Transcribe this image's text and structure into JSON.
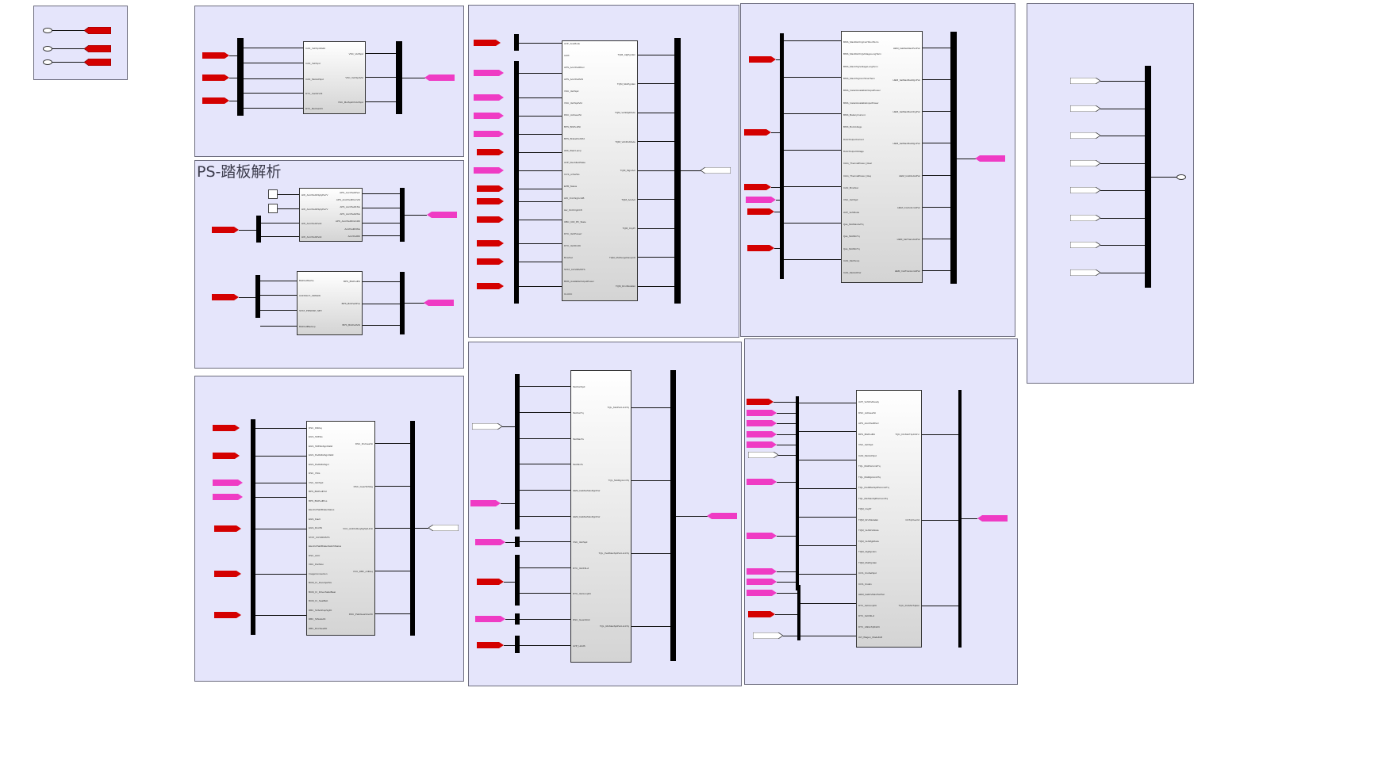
{
  "colors": {
    "goto": "#d40000",
    "from": "#ef3bc4",
    "area": "#e5e5fb",
    "bus": "#000000"
  },
  "areas": {
    "pedal_parse": {
      "title": "PS-踏板解析"
    }
  },
  "blocks": {
    "b1": {
      "in": [
        "CAN_VehSpdValid",
        "CAN_VehSpd",
        "CAN_MotActSpd",
        "DTC_CanDrvFlt",
        "DTC_MotCanFlt"
      ],
      "out": [
        "VSC_VehSpd",
        "VSC_VehSpdVld",
        "VSC_MotSpdOrVehSpd"
      ]
    },
    "b2": {
      "in": [
        "HW_AccrPedl1SplyPwrV",
        "HW_AccrPedl2SplyPwrV",
        "HW_AccrPedl1Volt",
        "HW_AccrPedl2Volt"
      ],
      "out": [
        "APS_AccrPedlPerc",
        "APS_AccrPedlPercVld",
        "APS_AccrPedl1Sts",
        "APS_AccrPedl2Sts",
        "APS_AccrPedlDrvIntFlt",
        "AccrPedlFltSts",
        "AccrPedlFlt"
      ]
    },
    "b3": {
      "in": [
        "BrkPedlSwNo",
        "CONTACT_FRNSW",
        "STAT_PRNDSP_SBY",
        "BrkPedlBackup"
      ],
      "out": [
        "BPS_BrkPedlSt",
        "BPS_BrkPedlPos",
        "BPS_BrkPedlVld"
      ]
    },
    "b4": {
      "in": [
        "DSC_FltRsq",
        "EGS_ShftSts",
        "EGS_ShftStsSgnlValid",
        "EGS_PedlAllwSgnValid",
        "EGS_PedlAllwSgnl",
        "DSC_VSts",
        "VSC_VehSpd",
        "BPS_BrkPedlVld",
        "BPS_BrkPedlPos",
        "ElectricParkBrakeStatus",
        "EGS_Fault",
        "EGS_DrvrPk",
        "STAT_CUVIRMSTS",
        "ElectricParkBrakeSwitchStatus",
        "DSC_ACC",
        "VDC_PwrMon",
        "ImageConnection",
        "BCM_Fr_DoorAjarSts",
        "BCM_Fr_DriverSafetBeat",
        "BCM_Fr_SeatBelt",
        "DBC_StrbeShopSgFlt",
        "DBC_StNodeFlt",
        "DBC_DrvrSeatFlt"
      ],
      "out": [
        "DSC_DrvGearSt",
        "DSC_GearShftAlg",
        "VCU_ActDrvReqAlgSplUnSt",
        "VCU_DBF_ctrlReq",
        "DSC_ParkGearInterFlt"
      ]
    },
    "b5": {
      "in": [
        "AVP_AvaMode",
        "AvRt",
        "APS_AccrPedlPerc",
        "APS_AccrPedlVld",
        "VSC_VehSpd",
        "VSC_VehSpdVld",
        "DSC_ActGearSt",
        "BPS_BrkPedlSt",
        "BPS_BrakePedlVld",
        "HMI_WarnLamp",
        "AVP_RecAllwdState",
        "CCS_ccSwSts",
        "EPB_Status",
        "HW_OnChrgCcntB",
        "Hw_OnChrgCC8",
        "OBC_CDI_PF_State",
        "DTC_VehPowerr",
        "DTC_VehDrvFlt",
        "BmsSoc",
        "STAT_CUVIRMSTS",
        "BMS_AvailableOutputPower",
        "CLUCC"
      ],
      "out": [
        "TQM_AlgPgmEn",
        "TQM_MotPgmEn",
        "TQM_VehMgtMode",
        "TQM_VehDrvMode",
        "TQM_MgmAct",
        "TQM_AccAct",
        "TQM_CsyPr",
        "TQM_MotSurgeDampCtl",
        "TQM_DrvrModeEn"
      ]
    },
    "b6": {
      "in": [
        "BMS_MaxDisChrgCurrShortTerm",
        "BMS_MaxDisChrgVoltageLongTerm",
        "BMS_MaxChrgVoltageLongTerm",
        "BMS_MaxChrgCurrShortTerm",
        "BMS_InstantAvailableOutputPower",
        "BMS_InstantAvailableInputPower",
        "BMS_BatteryCurrent",
        "BMS_BusVoltage",
        "DcdcOutputCurrent",
        "DcdcOutputVoltage",
        "CHG_ThermalPower_Real",
        "CHG_ThermalPower_Req",
        "CAN_BmsSoc",
        "VSC_VehSpd",
        "AVP_VehMode",
        "Qas_MotMaxAvlTq",
        "Qas_MotMinTq",
        "Qas_MotMinTq",
        "CAN_MotTemp",
        "CAN_MotActPwr"
      ],
      "out": [
        "HEM_batMaxMaxPwrPwr",
        "HEM_batMaxMaxRgnPwr",
        "HEM_batMaxMaxChgPwr",
        "HEM_batMaxMaxRgnPwr",
        "HEM_InstDisAvlPwr",
        "HEM_InstAvlLimitPwr",
        "HEM_batTransAvlPwr",
        "HEM_InstTransLimitPwr"
      ]
    },
    "b7": {
      "in": [
        "MotFwrSpd",
        "MotFwrTq",
        "MotMaxTu",
        "MotMinTu",
        "HEM_batMaxMaxRgnPwr",
        "HEM_batMaxMaxRgnPwr",
        "VSC_VehSpd",
        "DTC_VehFltLvl",
        "DTC_VehLimpFlt",
        "DSC_GearAtGtt",
        "AVP_HoldS"
      ],
      "out": [
        "TQL_MotPwrLimitTq",
        "TQL_MotRgnLimTq",
        "TQL_PedlMaxSplPwrLimitTq",
        "TQL_RtnMaxSplPwrLimitTq"
      ]
    },
    "b8": {
      "in": [
        "AVP_VehDrvReady",
        "DSC_ActGearSt",
        "APS_AccrPedlPerc",
        "BPS_BrkPedlSt",
        "VSC_VehSpd",
        "CAN_MotActSpd",
        "TQL_MotPwrLimitTq",
        "TQL_MotRgnLimitTq",
        "TQL_PedlMaxSplPwrLimitTq",
        "TQL_RtnMaxSplPwrLimitTq",
        "TQM_CsyPr",
        "TQM_DrvrModeEn",
        "TQM_VehDrvMode",
        "TQM_VehMgtMode",
        "TQM_AlgPgmEn",
        "TQM_MotPgmEn",
        "CCS_CruSetSpd",
        "CCS_CruEn",
        "HEM_batDrvMaxPwrPwr",
        "DTC_VehLimpFlt",
        "DTC_VehFltLvl",
        "DTC_AbbleTqDisFlt",
        "AVI_Wagen_ModelGR"
      ],
      "out": [
        "TQC_DrvMotTqUnDrvr",
        "CCTqOverrid",
        "TQC_DrvMotTqEco"
      ]
    }
  }
}
